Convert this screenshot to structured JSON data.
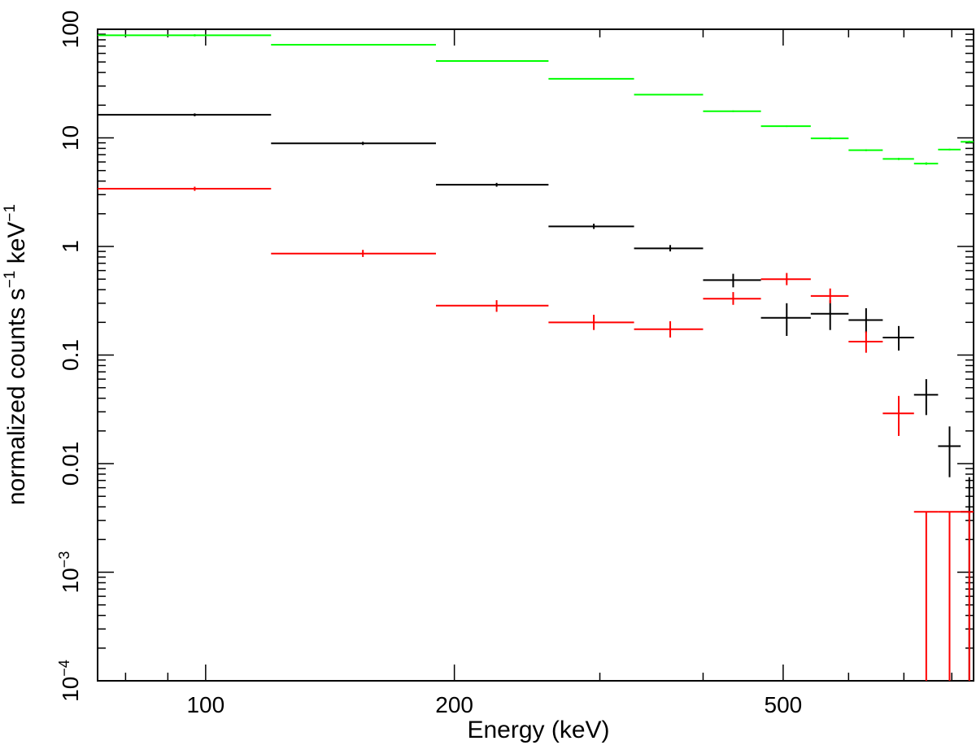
{
  "chart_data": {
    "type": "scatter",
    "xlabel": "Energy (keV)",
    "ylabel": {
      "base": "normalized counts s",
      "sup1": "−1",
      "mid": " keV",
      "sup2": "−1"
    },
    "xscale": "log",
    "yscale": "log",
    "xlim": [
      74,
      850
    ],
    "ylim": [
      0.0001,
      100
    ],
    "x_ticks": [
      {
        "value": 100,
        "label": "100"
      },
      {
        "value": 200,
        "label": "200"
      },
      {
        "value": 500,
        "label": "500"
      }
    ],
    "y_ticks": [
      {
        "value": 100,
        "label": "100"
      },
      {
        "value": 10,
        "label": "10"
      },
      {
        "value": 1,
        "label": "1"
      },
      {
        "value": 0.1,
        "label": "0.1"
      },
      {
        "value": 0.01,
        "label": "0.01"
      },
      {
        "value": 0.001,
        "base": "10",
        "sup": "−3"
      },
      {
        "value": 0.0001,
        "base": "10",
        "sup": "−4"
      }
    ],
    "grid": false,
    "legend": "none",
    "series": [
      {
        "color": "#00ff00",
        "points": [
          {
            "x0": 74,
            "x1": 120,
            "xc": 97,
            "y": 88,
            "ylo": 86,
            "yhi": 90
          },
          {
            "x0": 120,
            "x1": 190,
            "xc": 155,
            "y": 72,
            "ylo": 71,
            "yhi": 73
          },
          {
            "x0": 190,
            "x1": 260,
            "xc": 225,
            "y": 51,
            "ylo": 50.5,
            "yhi": 51.5
          },
          {
            "x0": 260,
            "x1": 330,
            "xc": 295,
            "y": 35,
            "ylo": 34.6,
            "yhi": 35.4
          },
          {
            "x0": 330,
            "x1": 400,
            "xc": 365,
            "y": 25,
            "ylo": 24.7,
            "yhi": 25.3
          },
          {
            "x0": 400,
            "x1": 470,
            "xc": 435,
            "y": 17.6,
            "ylo": 17.3,
            "yhi": 17.9
          },
          {
            "x0": 470,
            "x1": 540,
            "xc": 505,
            "y": 12.8,
            "ylo": 12.6,
            "yhi": 13.0
          },
          {
            "x0": 540,
            "x1": 600,
            "xc": 570,
            "y": 9.9,
            "ylo": 9.7,
            "yhi": 10.1
          },
          {
            "x0": 600,
            "x1": 660,
            "xc": 630,
            "y": 7.7,
            "ylo": 7.55,
            "yhi": 7.85
          },
          {
            "x0": 660,
            "x1": 720,
            "xc": 690,
            "y": 6.4,
            "ylo": 6.25,
            "yhi": 6.55
          },
          {
            "x0": 720,
            "x1": 770,
            "xc": 745,
            "y": 5.8,
            "ylo": 5.65,
            "yhi": 5.95
          },
          {
            "x0": 770,
            "x1": 820,
            "xc": 795,
            "y": 7.8,
            "ylo": 7.65,
            "yhi": 7.95
          },
          {
            "x0": 820,
            "x1": 850,
            "xc": 840,
            "y": 9.2,
            "ylo": 9.0,
            "yhi": 9.4
          }
        ]
      },
      {
        "color": "#000000",
        "points": [
          {
            "x0": 74,
            "x1": 120,
            "xc": 97,
            "y": 16.3,
            "ylo": 15.8,
            "yhi": 16.8
          },
          {
            "x0": 120,
            "x1": 190,
            "xc": 155,
            "y": 8.9,
            "ylo": 8.6,
            "yhi": 9.2
          },
          {
            "x0": 190,
            "x1": 260,
            "xc": 225,
            "y": 3.7,
            "ylo": 3.55,
            "yhi": 3.85
          },
          {
            "x0": 260,
            "x1": 330,
            "xc": 295,
            "y": 1.53,
            "ylo": 1.45,
            "yhi": 1.62
          },
          {
            "x0": 330,
            "x1": 400,
            "xc": 365,
            "y": 0.96,
            "ylo": 0.9,
            "yhi": 1.03
          },
          {
            "x0": 400,
            "x1": 470,
            "xc": 435,
            "y": 0.49,
            "ylo": 0.42,
            "yhi": 0.56
          },
          {
            "x0": 470,
            "x1": 540,
            "xc": 505,
            "y": 0.22,
            "ylo": 0.15,
            "yhi": 0.3
          },
          {
            "x0": 540,
            "x1": 600,
            "xc": 570,
            "y": 0.24,
            "ylo": 0.17,
            "yhi": 0.32
          },
          {
            "x0": 600,
            "x1": 660,
            "xc": 630,
            "y": 0.21,
            "ylo": 0.16,
            "yhi": 0.27
          },
          {
            "x0": 660,
            "x1": 720,
            "xc": 690,
            "y": 0.145,
            "ylo": 0.11,
            "yhi": 0.185
          },
          {
            "x0": 720,
            "x1": 770,
            "xc": 745,
            "y": 0.043,
            "ylo": 0.028,
            "yhi": 0.06
          },
          {
            "x0": 770,
            "x1": 820,
            "xc": 795,
            "y": 0.0145,
            "ylo": 0.0075,
            "yhi": 0.022
          },
          {
            "x0": 820,
            "x1": 850,
            "xc": 840,
            "y": 0.0036,
            "ylo": 0.0001,
            "yhi": 0.0075
          }
        ]
      },
      {
        "color": "#ff0000",
        "points": [
          {
            "x0": 74,
            "x1": 120,
            "xc": 97,
            "y": 3.4,
            "ylo": 3.25,
            "yhi": 3.55
          },
          {
            "x0": 120,
            "x1": 190,
            "xc": 155,
            "y": 0.86,
            "ylo": 0.8,
            "yhi": 0.93
          },
          {
            "x0": 190,
            "x1": 260,
            "xc": 225,
            "y": 0.285,
            "ylo": 0.25,
            "yhi": 0.32
          },
          {
            "x0": 260,
            "x1": 330,
            "xc": 295,
            "y": 0.2,
            "ylo": 0.17,
            "yhi": 0.235
          },
          {
            "x0": 330,
            "x1": 400,
            "xc": 365,
            "y": 0.173,
            "ylo": 0.145,
            "yhi": 0.205
          },
          {
            "x0": 400,
            "x1": 470,
            "xc": 435,
            "y": 0.33,
            "ylo": 0.29,
            "yhi": 0.38
          },
          {
            "x0": 470,
            "x1": 540,
            "xc": 505,
            "y": 0.5,
            "ylo": 0.44,
            "yhi": 0.57
          },
          {
            "x0": 540,
            "x1": 600,
            "xc": 570,
            "y": 0.35,
            "ylo": 0.3,
            "yhi": 0.41
          },
          {
            "x0": 600,
            "x1": 660,
            "xc": 630,
            "y": 0.133,
            "ylo": 0.105,
            "yhi": 0.165
          },
          {
            "x0": 660,
            "x1": 720,
            "xc": 690,
            "y": 0.029,
            "ylo": 0.018,
            "yhi": 0.042
          },
          {
            "x0": 720,
            "x1": 770,
            "xc": 745,
            "y": 0.0036,
            "ylo": 0.0001,
            "yhi": 0.0036
          },
          {
            "x0": 770,
            "x1": 820,
            "xc": 795,
            "y": 0.0036,
            "ylo": 0.0001,
            "yhi": 0.0036
          },
          {
            "x0": 820,
            "x1": 850,
            "xc": 840,
            "y": 0.0036,
            "ylo": 0.0001,
            "yhi": 0.0036
          }
        ]
      }
    ]
  }
}
